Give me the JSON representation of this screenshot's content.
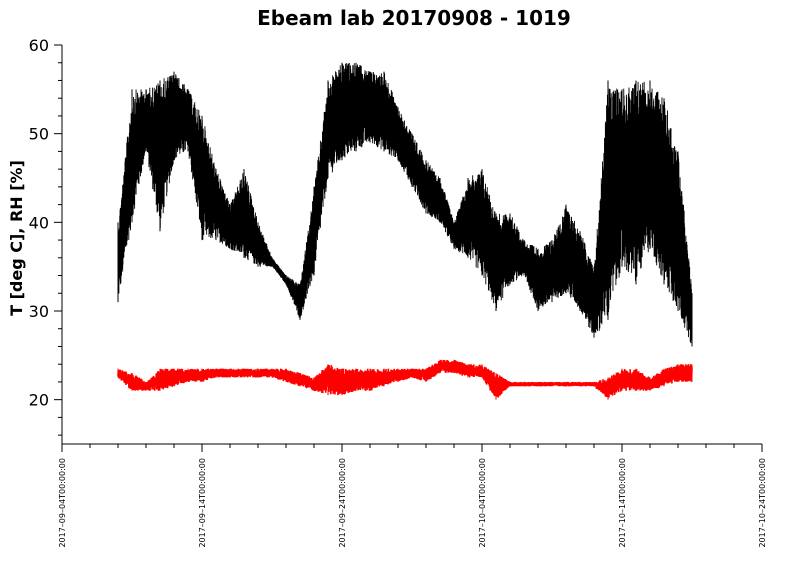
{
  "chart_data": {
    "type": "line",
    "title": "Ebeam lab 20170908 - 1019",
    "xlabel": "",
    "ylabel": "T [deg C], RH [%]",
    "xlim": [
      "2017-09-04",
      "2017-10-24"
    ],
    "ylim": [
      15,
      60
    ],
    "xtick_labels": [
      "2017–09–04T00:00:00",
      "2017–09–14T00:00:00",
      "2017–09–24T00:00:00",
      "2017–10–04T00:00:00",
      "2017–10–14T00:00:00",
      "2017–10–24T00:00:00"
    ],
    "ytick_values": [
      20,
      30,
      40,
      50,
      60
    ],
    "grid": false,
    "legend": "none",
    "series": [
      {
        "color": "#000000",
        "x": [
          "2017-09-08",
          "2017-09-09",
          "2017-09-10",
          "2017-09-11",
          "2017-09-12",
          "2017-09-13",
          "2017-09-14",
          "2017-09-15",
          "2017-09-16",
          "2017-09-17",
          "2017-09-18",
          "2017-09-19",
          "2017-09-20",
          "2017-09-21",
          "2017-09-22",
          "2017-09-23",
          "2017-09-24",
          "2017-09-25",
          "2017-09-26",
          "2017-09-27",
          "2017-09-28",
          "2017-09-29",
          "2017-09-30",
          "2017-10-01",
          "2017-10-02",
          "2017-10-03",
          "2017-10-04",
          "2017-10-05",
          "2017-10-06",
          "2017-10-07",
          "2017-10-08",
          "2017-10-09",
          "2017-10-10",
          "2017-10-11",
          "2017-10-12",
          "2017-10-13",
          "2017-10-14",
          "2017-10-15",
          "2017-10-16",
          "2017-10-17",
          "2017-10-18",
          "2017-10-19"
        ],
        "min": [
          31,
          40,
          48,
          39,
          47,
          48,
          38,
          38,
          37,
          36,
          35,
          35,
          33,
          29,
          34,
          45,
          47,
          48,
          49,
          48,
          47,
          44,
          41,
          40,
          37,
          36,
          34,
          30,
          33,
          34,
          30,
          31,
          32,
          30,
          27,
          29,
          35,
          33,
          37,
          33,
          30,
          26
        ],
        "max": [
          40,
          55,
          55,
          56,
          57,
          55,
          52,
          46,
          42,
          46,
          40,
          36,
          34,
          33,
          44,
          56,
          58,
          58,
          57,
          57,
          53,
          50,
          47,
          45,
          40,
          45,
          46,
          41,
          41,
          38,
          37,
          38,
          42,
          39,
          35,
          56,
          55,
          56,
          56,
          54,
          48,
          32
        ]
      },
      {
        "color": "#ff0000",
        "x": [
          "2017-09-08",
          "2017-09-09",
          "2017-09-10",
          "2017-09-11",
          "2017-09-12",
          "2017-09-13",
          "2017-09-14",
          "2017-09-15",
          "2017-09-16",
          "2017-09-17",
          "2017-09-18",
          "2017-09-19",
          "2017-09-20",
          "2017-09-21",
          "2017-09-22",
          "2017-09-23",
          "2017-09-24",
          "2017-09-25",
          "2017-09-26",
          "2017-09-27",
          "2017-09-28",
          "2017-09-29",
          "2017-09-30",
          "2017-10-01",
          "2017-10-02",
          "2017-10-03",
          "2017-10-04",
          "2017-10-05",
          "2017-10-06",
          "2017-10-07",
          "2017-10-08",
          "2017-10-09",
          "2017-10-10",
          "2017-10-11",
          "2017-10-12",
          "2017-10-13",
          "2017-10-14",
          "2017-10-15",
          "2017-10-16",
          "2017-10-17",
          "2017-10-18",
          "2017-10-19"
        ],
        "min": [
          22.5,
          21,
          21,
          21,
          21.5,
          22,
          22,
          22.5,
          22.5,
          22.5,
          22.5,
          22.5,
          22,
          21.5,
          21,
          20.5,
          20.5,
          21,
          21,
          21.5,
          22,
          22.5,
          22,
          23,
          23,
          22.5,
          22.5,
          20,
          21.5,
          21.5,
          21.5,
          21.5,
          21.5,
          21.5,
          21.5,
          20,
          21,
          21,
          21,
          21.5,
          22,
          22
        ],
        "max": [
          23.5,
          23,
          22,
          23.5,
          23.5,
          23.5,
          23.5,
          23.5,
          23.5,
          23.5,
          23.5,
          23.5,
          23.5,
          23,
          22.5,
          24,
          23.5,
          23.5,
          23.5,
          23.5,
          23.5,
          23.5,
          23.5,
          24.5,
          24.5,
          24,
          24,
          23,
          22,
          22,
          22,
          22,
          22,
          22,
          22,
          22.5,
          23.5,
          23.5,
          22.5,
          23.5,
          24,
          24
        ]
      }
    ]
  }
}
